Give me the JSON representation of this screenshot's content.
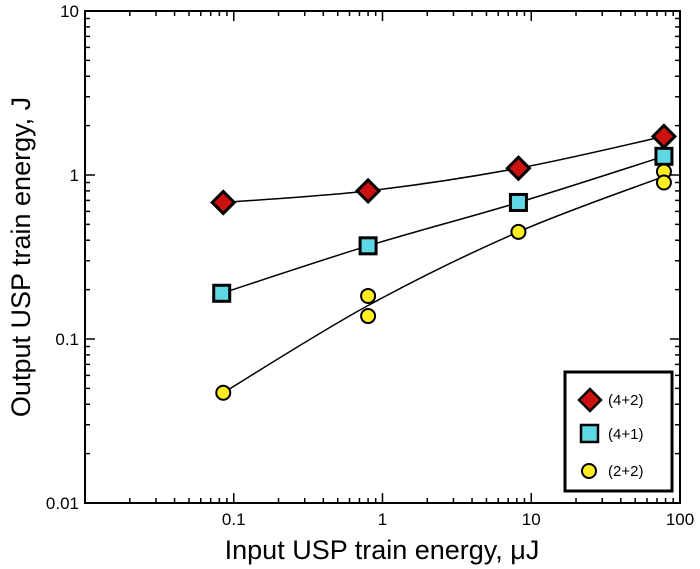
{
  "chart_data": {
    "type": "scatter",
    "xlabel": "Input USP train energy, μJ",
    "ylabel": "Output USP train energy, J",
    "xscale": "log",
    "yscale": "log",
    "xlim": [
      0.01,
      100
    ],
    "ylim": [
      0.01,
      10
    ],
    "x_ticks": [
      {
        "value": 0.1,
        "label": "0.1"
      },
      {
        "value": 1,
        "label": "1"
      },
      {
        "value": 10,
        "label": "10"
      },
      {
        "value": 100,
        "label": "100"
      }
    ],
    "y_ticks": [
      {
        "value": 0.01,
        "label": "0.01"
      },
      {
        "value": 0.1,
        "label": "0.1"
      },
      {
        "value": 1,
        "label": "1"
      },
      {
        "value": 10,
        "label": "10"
      }
    ],
    "grid": false,
    "legend_position": "bottom-right",
    "series": [
      {
        "name": "(4+2)",
        "marker": "diamond",
        "color": "#cc1111",
        "points": [
          [
            0.085,
            0.68
          ],
          [
            0.8,
            0.8
          ],
          [
            8.2,
            1.1
          ],
          [
            78,
            1.72
          ]
        ],
        "curve": [
          [
            0.085,
            0.68
          ],
          [
            0.8,
            0.8
          ],
          [
            8.2,
            1.1
          ],
          [
            78,
            1.72
          ]
        ]
      },
      {
        "name": "(4+1)",
        "marker": "square",
        "color": "#5ed8e4",
        "points": [
          [
            0.083,
            0.19
          ],
          [
            0.8,
            0.37
          ],
          [
            8.2,
            0.68
          ],
          [
            78,
            1.3
          ]
        ],
        "curve": [
          [
            0.083,
            0.19
          ],
          [
            0.8,
            0.37
          ],
          [
            8.2,
            0.68
          ],
          [
            78,
            1.3
          ]
        ]
      },
      {
        "name": "(2+2)",
        "marker": "circle",
        "color": "#ffee22",
        "points": [
          [
            0.085,
            0.047
          ],
          [
            0.8,
            0.183
          ],
          [
            0.8,
            0.138
          ],
          [
            8.2,
            0.45
          ],
          [
            78,
            1.05
          ],
          [
            78,
            0.9
          ]
        ],
        "curve": [
          [
            0.085,
            0.047
          ],
          [
            0.8,
            0.16
          ],
          [
            8.2,
            0.45
          ],
          [
            78,
            0.98
          ]
        ]
      }
    ]
  }
}
